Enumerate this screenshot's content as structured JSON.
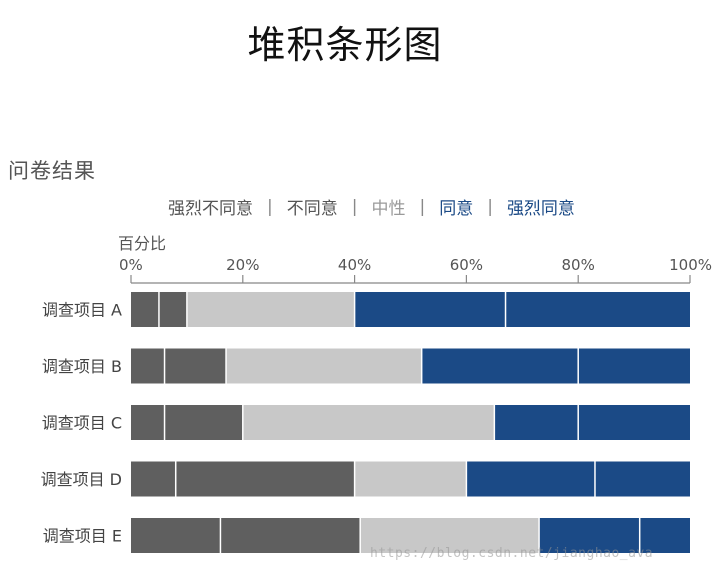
{
  "title": "堆积条形图",
  "heading": "问卷结果",
  "watermark": "https://blog.csdn.net/jianghao_ava",
  "chart_data": {
    "type": "bar",
    "orientation": "horizontal",
    "stacked": true,
    "title": "",
    "xlabel": "百分比",
    "ylabel": "",
    "xlim": [
      0,
      100
    ],
    "x_ticks": [
      "0%",
      "20%",
      "40%",
      "60%",
      "80%",
      "100%"
    ],
    "legend_position": "top",
    "categories": [
      "调查项目 A",
      "调查项目 B",
      "调查项目 C",
      "调查项目 D",
      "调查项目 E"
    ],
    "series": [
      {
        "name": "强烈不同意",
        "color": "#5f5f5f",
        "values": [
          5,
          6,
          6,
          8,
          16
        ]
      },
      {
        "name": "不同意",
        "color": "#5f5f5f",
        "values": [
          5,
          11,
          14,
          32,
          25
        ]
      },
      {
        "name": "中性",
        "color": "#c8c8c8",
        "values": [
          30,
          35,
          45,
          20,
          32
        ]
      },
      {
        "name": "同意",
        "color": "#1b4a86",
        "values": [
          27,
          28,
          15,
          23,
          18
        ]
      },
      {
        "name": "强烈同意",
        "color": "#1b4a86",
        "values": [
          33,
          20,
          20,
          17,
          9
        ]
      }
    ],
    "legend_colors": [
      "#555555",
      "#555555",
      "#9a9a9a",
      "#1b4a86",
      "#1b4a86"
    ]
  }
}
